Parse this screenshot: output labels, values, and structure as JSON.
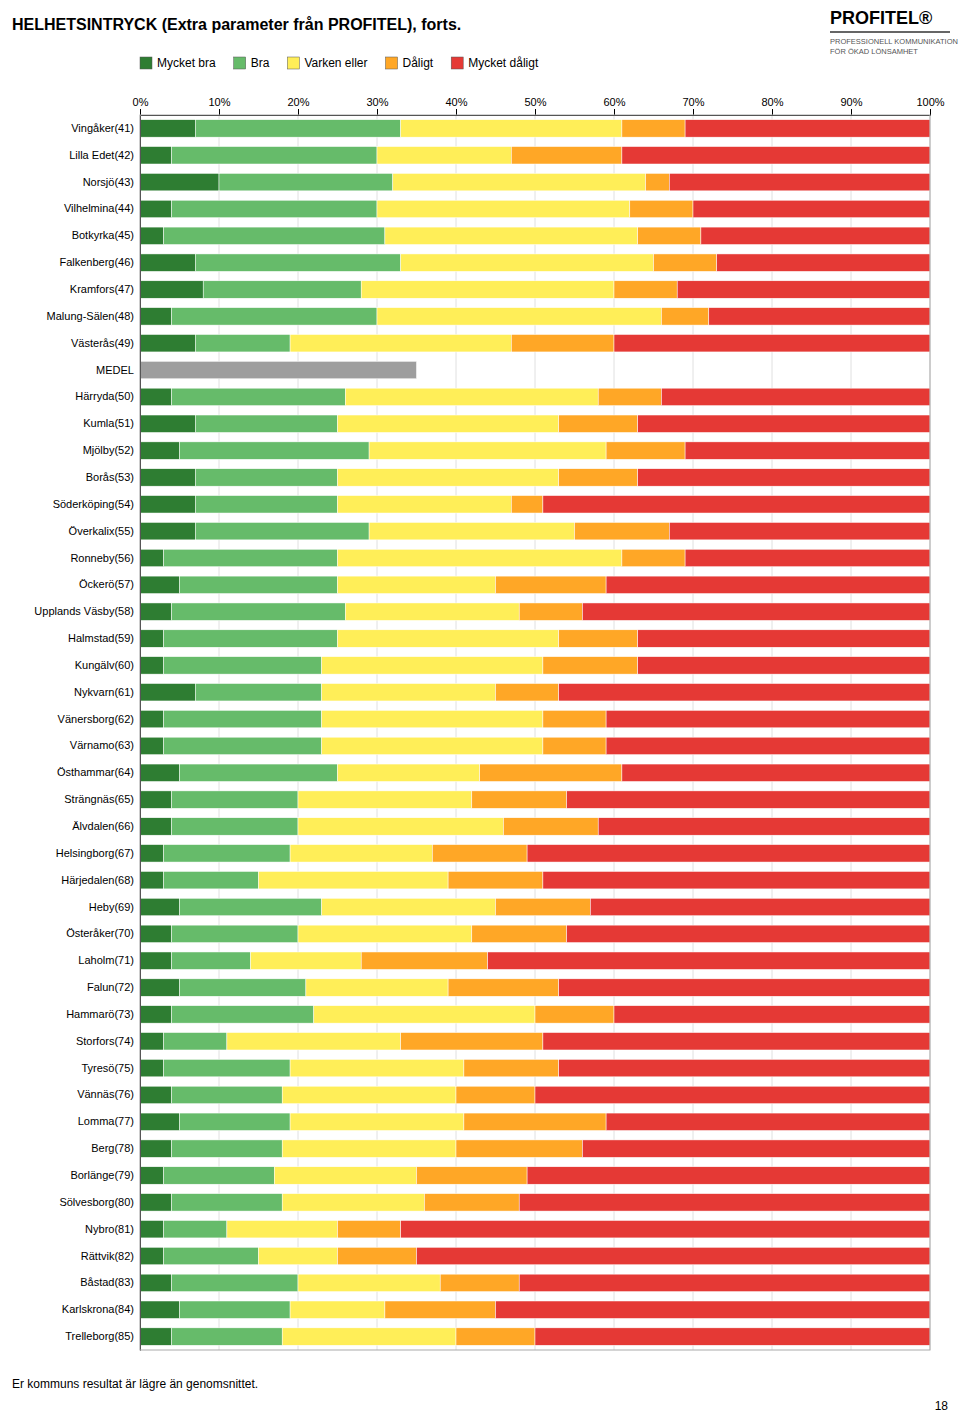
{
  "chart_data": {
    "type": "bar",
    "title": "HELHETSINTRYCK (Extra parameter från PROFITEL), forts.",
    "annotations": [
      "PROFITEL®",
      "PROFESSIONELL KOMMUNIKATION",
      "FÖR ÖKAD LÖNSAMHET",
      "Er kommuns resultat är lägre än genomsnittet.",
      "18"
    ],
    "orientation": "horizontal",
    "stacked": true,
    "grid": true,
    "legend": "top",
    "categories": [
      "Vingåker(41)",
      "Lilla Edet(42)",
      "Norsjö(43)",
      "Vilhelmina(44)",
      "Botkyrka(45)",
      "Falkenberg(46)",
      "Kramfors(47)",
      "Malung-Sälen(48)",
      "Västerås(49)",
      "MEDEL",
      "Härryda(50)",
      "Kumla(51)",
      "Mjölby(52)",
      "Borås(53)",
      "Söderköping(54)",
      "Överkalix(55)",
      "Ronneby(56)",
      "Öckerö(57)",
      "Upplands Väsby(58)",
      "Halmstad(59)",
      "Kungälv(60)",
      "Nykvarn(61)",
      "Vänersborg(62)",
      "Värnamo(63)",
      "Östhammar(64)",
      "Strängnäs(65)",
      "Älvdalen(66)",
      "Helsingborg(67)",
      "Härjedalen(68)",
      "Heby(69)",
      "Österåker(70)",
      "Laholm(71)",
      "Falun(72)",
      "Hammarö(73)",
      "Storfors(74)",
      "Tyresö(75)",
      "Vännäs(76)",
      "Lomma(77)",
      "Berg(78)",
      "Borlänge(79)",
      "Sölvesborg(80)",
      "Nybro(81)",
      "Rättvik(82)",
      "Båstad(83)",
      "Karlskrona(84)",
      "Trelleborg(85)"
    ],
    "series": [
      {
        "name": "Mycket bra",
        "color": "#2e7d32",
        "colors": [
          "#2e7d32",
          "#2e7d32",
          "#2e7d32",
          "#2e7d32",
          "#2e7d32",
          "#2e7d32",
          "#2e7d32",
          "#2e7d32",
          "#2e7d32",
          "#9e9e9e",
          "#2e7d32",
          "#2e7d32",
          "#2e7d32",
          "#2e7d32",
          "#2e7d32",
          "#2e7d32",
          "#2e7d32",
          "#2e7d32",
          "#2e7d32",
          "#2e7d32",
          "#2e7d32",
          "#2e7d32",
          "#2e7d32",
          "#2e7d32",
          "#2e7d32",
          "#2e7d32",
          "#2e7d32",
          "#2e7d32",
          "#2e7d32",
          "#2e7d32",
          "#2e7d32",
          "#2e7d32",
          "#2e7d32",
          "#2e7d32",
          "#2e7d32",
          "#2e7d32",
          "#2e7d32",
          "#2e7d32",
          "#2e7d32",
          "#2e7d32",
          "#2e7d32",
          "#2e7d32",
          "#2e7d32",
          "#2e7d32",
          "#2e7d32",
          "#2e7d32"
        ],
        "values": [
          7,
          4,
          10,
          4,
          3,
          7,
          8,
          4,
          7,
          35,
          4,
          7,
          5,
          7,
          7,
          7,
          3,
          5,
          4,
          3,
          3,
          7,
          3,
          3,
          5,
          4,
          4,
          3,
          3,
          5,
          4,
          4,
          5,
          4,
          3,
          3,
          4,
          5,
          4,
          3,
          4,
          3,
          3,
          4,
          5,
          4
        ]
      },
      {
        "name": "Bra",
        "color": "#66bb6a",
        "values": [
          26,
          26,
          22,
          26,
          28,
          26,
          20,
          26,
          12,
          0,
          22,
          18,
          24,
          18,
          18,
          22,
          22,
          20,
          22,
          22,
          20,
          16,
          20,
          20,
          20,
          16,
          16,
          16,
          12,
          18,
          16,
          10,
          16,
          18,
          8,
          16,
          14,
          14,
          14,
          14,
          14,
          8,
          12,
          16,
          14,
          14
        ]
      },
      {
        "name": "Varken eller",
        "color": "#ffee58",
        "values": [
          28,
          17,
          32,
          32,
          32,
          32,
          32,
          36,
          28,
          0,
          32,
          28,
          30,
          28,
          22,
          26,
          36,
          20,
          22,
          28,
          28,
          22,
          28,
          28,
          18,
          22,
          26,
          18,
          24,
          22,
          22,
          14,
          18,
          28,
          22,
          22,
          22,
          22,
          22,
          18,
          18,
          14,
          10,
          18,
          12,
          22
        ]
      },
      {
        "name": "Dåligt",
        "color": "#ffa726",
        "values": [
          8,
          14,
          3,
          8,
          8,
          8,
          8,
          6,
          13,
          0,
          8,
          10,
          10,
          10,
          4,
          12,
          8,
          14,
          8,
          10,
          12,
          8,
          8,
          8,
          18,
          12,
          12,
          12,
          12,
          12,
          12,
          16,
          14,
          10,
          18,
          12,
          10,
          18,
          16,
          14,
          12,
          8,
          10,
          10,
          14,
          10
        ]
      },
      {
        "name": "Mycket dåligt",
        "color": "#e53935",
        "values": [
          31,
          39,
          33,
          30,
          29,
          27,
          32,
          28,
          40,
          0,
          34,
          37,
          31,
          37,
          49,
          33,
          31,
          41,
          44,
          37,
          37,
          47,
          41,
          41,
          39,
          46,
          42,
          51,
          49,
          43,
          46,
          56,
          47,
          40,
          49,
          47,
          50,
          41,
          44,
          51,
          52,
          67,
          65,
          52,
          55,
          50
        ]
      }
    ],
    "xlim": [
      0,
      100
    ],
    "xticks": [
      {
        "value": 0,
        "label": "0%"
      },
      {
        "value": 10,
        "label": "10%"
      },
      {
        "value": 20,
        "label": "20%"
      },
      {
        "value": 30,
        "label": "30%"
      },
      {
        "value": 40,
        "label": "40%"
      },
      {
        "value": 50,
        "label": "50%"
      },
      {
        "value": 60,
        "label": "60%"
      },
      {
        "value": 70,
        "label": "70%"
      },
      {
        "value": 80,
        "label": "80%"
      },
      {
        "value": 90,
        "label": "90%"
      },
      {
        "value": 100,
        "label": "100%"
      }
    ]
  }
}
